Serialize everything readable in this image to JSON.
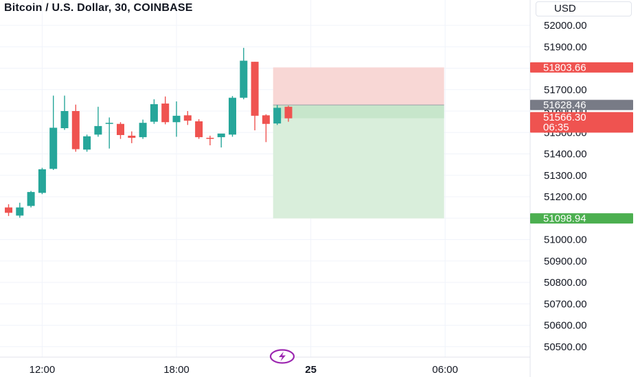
{
  "header": {
    "title": "Bitcoin / U.S. Dollar, 30, COINBASE"
  },
  "price_scale": {
    "currency": "USD"
  },
  "chart_data": {
    "type": "candlestick",
    "title": "Bitcoin / U.S. Dollar, 30, COINBASE",
    "y_axis": {
      "ylim": [
        50450,
        52050
      ],
      "ticks": [
        52000,
        51900,
        51800,
        51700,
        51600,
        51500,
        51400,
        51300,
        51200,
        51100,
        51000,
        50900,
        50800,
        50700,
        50600,
        50500
      ],
      "tick_labels": [
        "52000.00",
        "51900.00",
        "51800.00",
        "51700.00",
        "51600.00",
        "51500.00",
        "51400.00",
        "51300.00",
        "51200.00",
        "51100.00",
        "51000.00",
        "50900.00",
        "50800.00",
        "50700.00",
        "50600.00",
        "50500.00"
      ]
    },
    "x_axis": {
      "tick_labels": [
        "12:00",
        "18:00",
        "25",
        "06:00"
      ],
      "tick_bar_index": [
        3,
        15,
        27,
        39
      ]
    },
    "grid": true,
    "colors": {
      "up": "#26a69a",
      "down": "#ef5350",
      "stop_zone": "#f8d7d5",
      "target_zone": "#d9eedb",
      "entry_line": "#9aa0a6"
    },
    "candles": [
      {
        "o": 51150,
        "h": 51165,
        "l": 51110,
        "c": 51125
      },
      {
        "o": 51112,
        "h": 51172,
        "l": 51102,
        "c": 51150
      },
      {
        "o": 51157,
        "h": 51227,
        "l": 51150,
        "c": 51222
      },
      {
        "o": 51218,
        "h": 51335,
        "l": 51212,
        "c": 51328
      },
      {
        "o": 51330,
        "h": 51672,
        "l": 51325,
        "c": 51522
      },
      {
        "o": 51520,
        "h": 51672,
        "l": 51512,
        "c": 51600
      },
      {
        "o": 51600,
        "h": 51630,
        "l": 51410,
        "c": 51422
      },
      {
        "o": 51420,
        "h": 51490,
        "l": 51410,
        "c": 51482
      },
      {
        "o": 51490,
        "h": 51620,
        "l": 51480,
        "c": 51530
      },
      {
        "o": 51540,
        "h": 51570,
        "l": 51425,
        "c": 51545
      },
      {
        "o": 51540,
        "h": 51548,
        "l": 51470,
        "c": 51488
      },
      {
        "o": 51485,
        "h": 51505,
        "l": 51450,
        "c": 51475
      },
      {
        "o": 51478,
        "h": 51560,
        "l": 51470,
        "c": 51545
      },
      {
        "o": 51550,
        "h": 51655,
        "l": 51540,
        "c": 51632
      },
      {
        "o": 51635,
        "h": 51668,
        "l": 51538,
        "c": 51548
      },
      {
        "o": 51548,
        "h": 51645,
        "l": 51480,
        "c": 51578
      },
      {
        "o": 51580,
        "h": 51600,
        "l": 51535,
        "c": 51555
      },
      {
        "o": 51552,
        "h": 51562,
        "l": 51470,
        "c": 51478
      },
      {
        "o": 51475,
        "h": 51485,
        "l": 51440,
        "c": 51472
      },
      {
        "o": 51478,
        "h": 51490,
        "l": 51430,
        "c": 51495
      },
      {
        "o": 51490,
        "h": 51670,
        "l": 51480,
        "c": 51662
      },
      {
        "o": 51662,
        "h": 51895,
        "l": 51655,
        "c": 51835
      },
      {
        "o": 51830,
        "h": 51830,
        "l": 51510,
        "c": 51578
      },
      {
        "o": 51580,
        "h": 51585,
        "l": 51455,
        "c": 51540
      },
      {
        "o": 51542,
        "h": 51628,
        "l": 51535,
        "c": 51615
      },
      {
        "o": 51620,
        "h": 51625,
        "l": 51550,
        "c": 51566
      }
    ],
    "position": {
      "entry": 51628.46,
      "stop": 51803.66,
      "target": 51098.94,
      "current_price": 51566.3,
      "countdown": "06:35"
    },
    "price_labels": [
      {
        "text": "51803.66",
        "kind": "stop"
      },
      {
        "text": "51628.46",
        "kind": "entry"
      },
      {
        "text": "51566.30",
        "kind": "current"
      },
      {
        "text": "51098.94",
        "kind": "target"
      }
    ]
  }
}
